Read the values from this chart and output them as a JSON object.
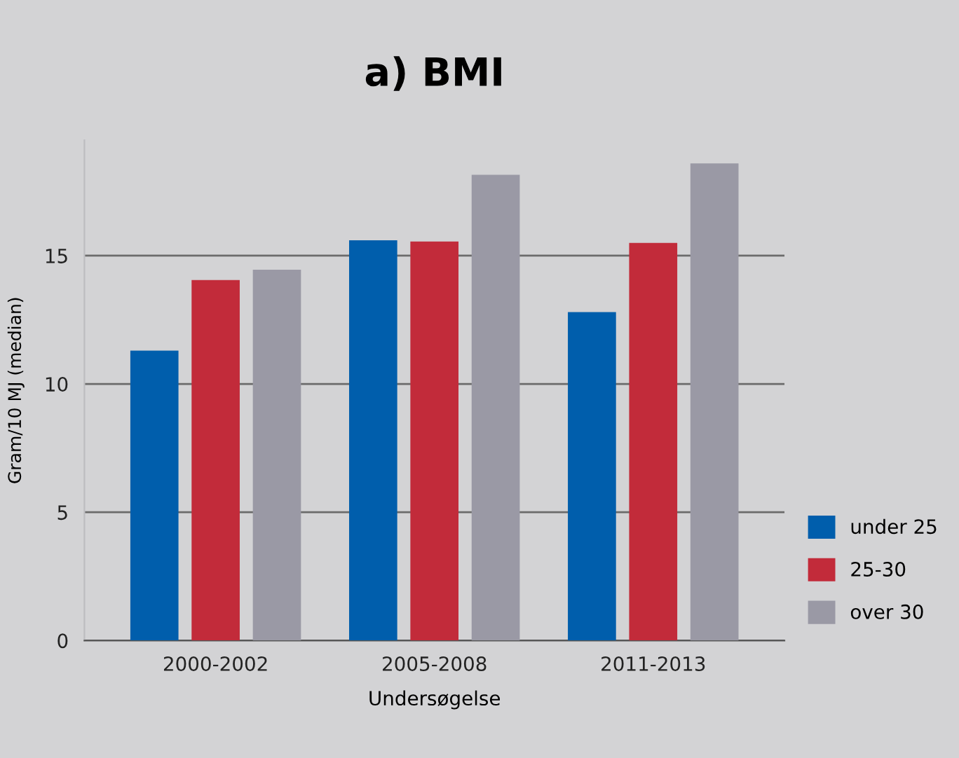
{
  "chart_data": {
    "type": "bar",
    "title": "a) BMI",
    "xlabel": "Undersøgelse",
    "ylabel": "Gram/10 MJ (median)",
    "categories": [
      "2000-2002",
      "2005-2008",
      "2011-2013"
    ],
    "series": [
      {
        "name": "under 25",
        "color": "#005eac",
        "values": [
          11.3,
          15.6,
          12.8
        ]
      },
      {
        "name": "25-30",
        "color": "#c22b3a",
        "values": [
          14.05,
          15.55,
          15.5
        ]
      },
      {
        "name": "over 30",
        "color": "#9a99a5",
        "values": [
          14.45,
          18.15,
          18.6
        ]
      }
    ],
    "ylim": [
      0,
      19.5
    ],
    "yticks": [
      0,
      5,
      10,
      15
    ],
    "grid": "y",
    "legend": "bottom right"
  }
}
